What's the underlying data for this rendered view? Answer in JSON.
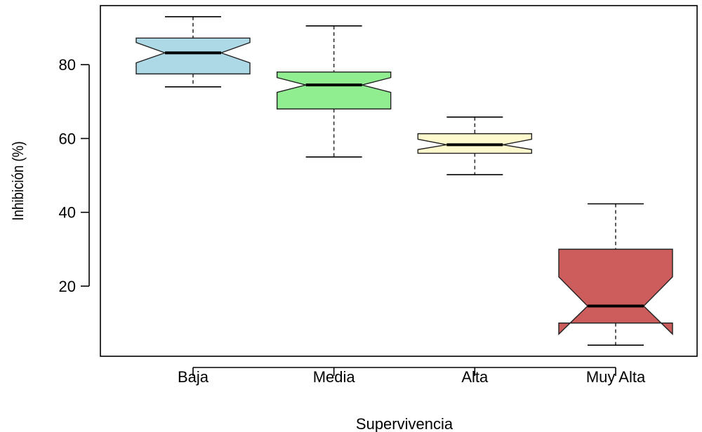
{
  "chart_data": {
    "type": "boxplot",
    "notched": true,
    "xlabel": "Supervivencia",
    "ylabel": "Inhibición (%)",
    "categories": [
      "Baja",
      "Media",
      "Alta",
      "Muy Alta"
    ],
    "yticks": [
      20,
      40,
      60,
      80
    ],
    "ylim": [
      1,
      96
    ],
    "grid": false,
    "boxes": [
      {
        "category": "Baja",
        "color": "#add8e6",
        "whisker_low": 74,
        "q1": 77.5,
        "notch_low": 80.5,
        "median": 83.2,
        "notch_high": 86,
        "q3": 87.2,
        "whisker_high": 93
      },
      {
        "category": "Media",
        "color": "#90ee90",
        "whisker_low": 55,
        "q1": 68,
        "notch_low": 72.5,
        "median": 74.5,
        "notch_high": 76.5,
        "q3": 78,
        "whisker_high": 90.5
      },
      {
        "category": "Alta",
        "color": "#fffacd",
        "whisker_low": 50.2,
        "q1": 56,
        "notch_low": 57,
        "median": 58.3,
        "notch_high": 59.8,
        "q3": 61.3,
        "whisker_high": 65.8
      },
      {
        "category": "Muy Alta",
        "color": "#cd5c5c",
        "whisker_low": 4,
        "q1": 10,
        "notch_low": 7,
        "median": 14.6,
        "notch_high": 22.5,
        "q3": 30,
        "whisker_high": 42.3
      }
    ]
  }
}
